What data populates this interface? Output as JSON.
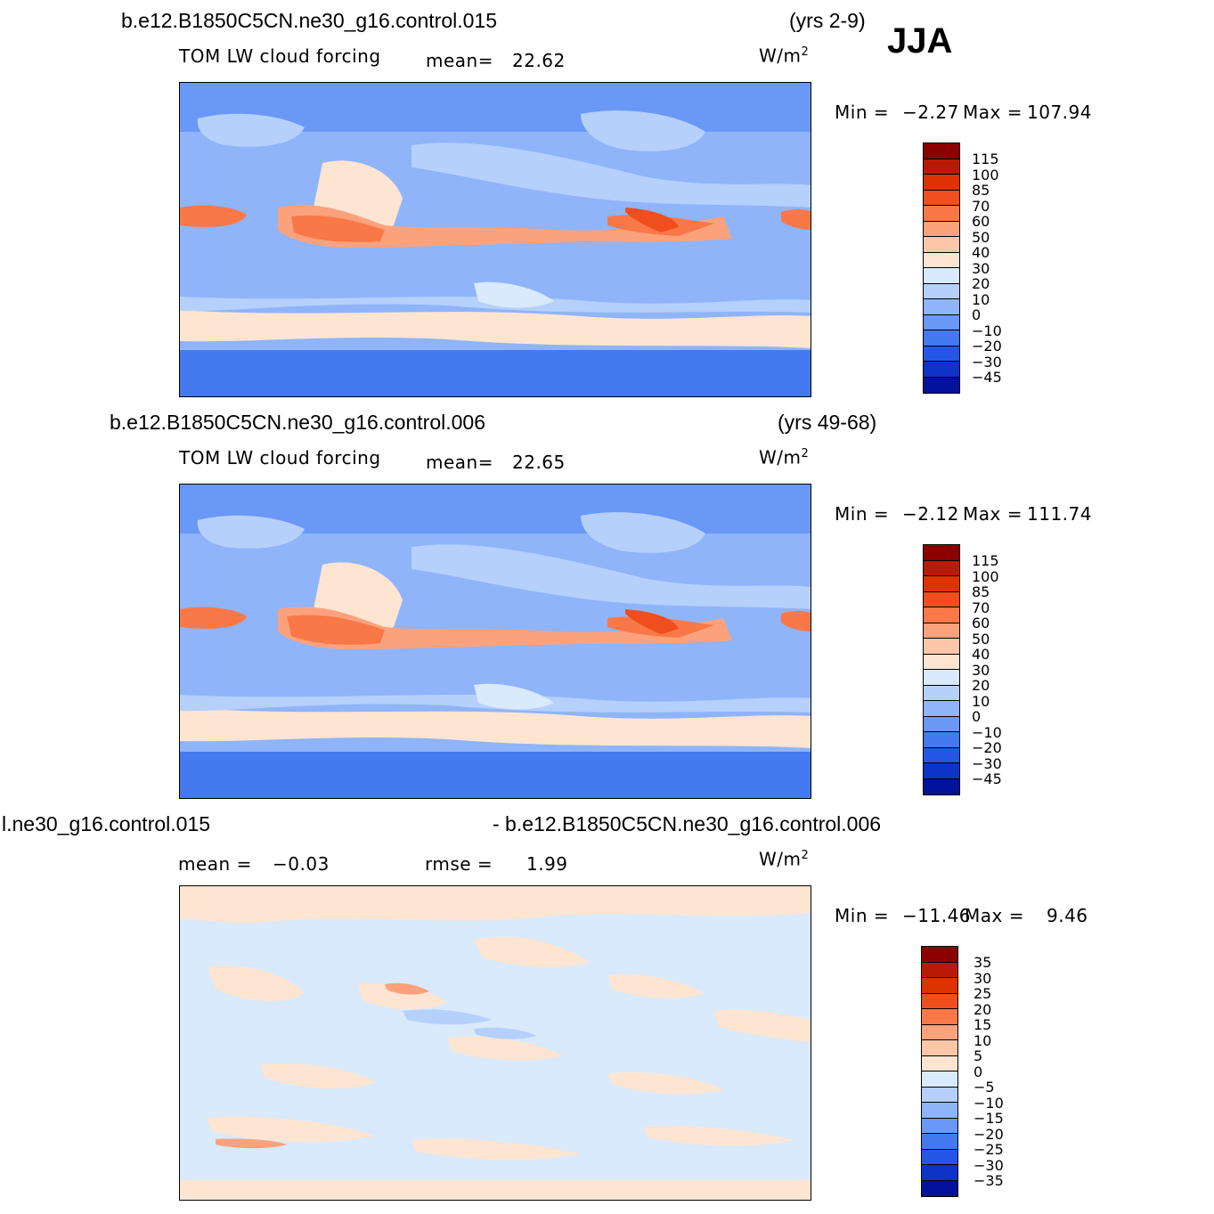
{
  "season": "JJA",
  "units_prefix": "W/m",
  "units_exp": "2",
  "panels": [
    {
      "case": "b.e12.B1850C5CN.ne30_g16.control.015",
      "years": "(yrs 2-9)",
      "variable": "TOM LW cloud forcing",
      "mean_label": "mean=",
      "mean_value": "22.62",
      "min_label": "Min =",
      "min_value": "−2.27",
      "max_label": "Max =",
      "max_value": "107.94",
      "colorbar_labels": [
        "115",
        "100",
        "85",
        "70",
        "60",
        "50",
        "40",
        "30",
        "20",
        "10",
        "0",
        "−10",
        "−20",
        "−30",
        "−45"
      ]
    },
    {
      "case": "b.e12.B1850C5CN.ne30_g16.control.006",
      "years": "(yrs 49-68)",
      "variable": "TOM LW cloud forcing",
      "mean_label": "mean=",
      "mean_value": "22.65",
      "min_label": "Min =",
      "min_value": "−2.12",
      "max_label": "Max =",
      "max_value": "111.74",
      "colorbar_labels": [
        "115",
        "100",
        "85",
        "70",
        "60",
        "50",
        "40",
        "30",
        "20",
        "10",
        "0",
        "−10",
        "−20",
        "−30",
        "−45"
      ]
    },
    {
      "case_left": "l.ne30_g16.control.015",
      "case_right": "- b.e12.B1850C5CN.ne30_g16.control.006",
      "mean_label": "mean =",
      "mean_value": "−0.03",
      "rmse_label": "rmse =",
      "rmse_value": "1.99",
      "min_label": "Min =",
      "min_value": "−11.46",
      "max_label": "Max =",
      "max_value": "9.46",
      "colorbar_labels": [
        "35",
        "30",
        "25",
        "20",
        "15",
        "10",
        "5",
        "0",
        "−5",
        "−10",
        "−15",
        "−20",
        "−25",
        "−30",
        "−35"
      ]
    }
  ],
  "colors": {
    "abs_scale": [
      "#8b0000",
      "#b91a05",
      "#dc3300",
      "#f04e1e",
      "#f97848",
      "#fba27d",
      "#fcc7a8",
      "#fde5d2",
      "#d8eafc",
      "#b5d0fb",
      "#8fb4fa",
      "#6a98f6",
      "#4479f0",
      "#2556e8",
      "#0e33c8",
      "#02129a"
    ],
    "diff_scale": [
      "#8b0000",
      "#b91a05",
      "#dc3300",
      "#f04e1e",
      "#f97848",
      "#fba27d",
      "#fcc7a8",
      "#fde5d2",
      "#d8eafc",
      "#b5d0fb",
      "#8fb4fa",
      "#6a98f6",
      "#4479f0",
      "#2556e8",
      "#0e33c8",
      "#02129a"
    ]
  }
}
